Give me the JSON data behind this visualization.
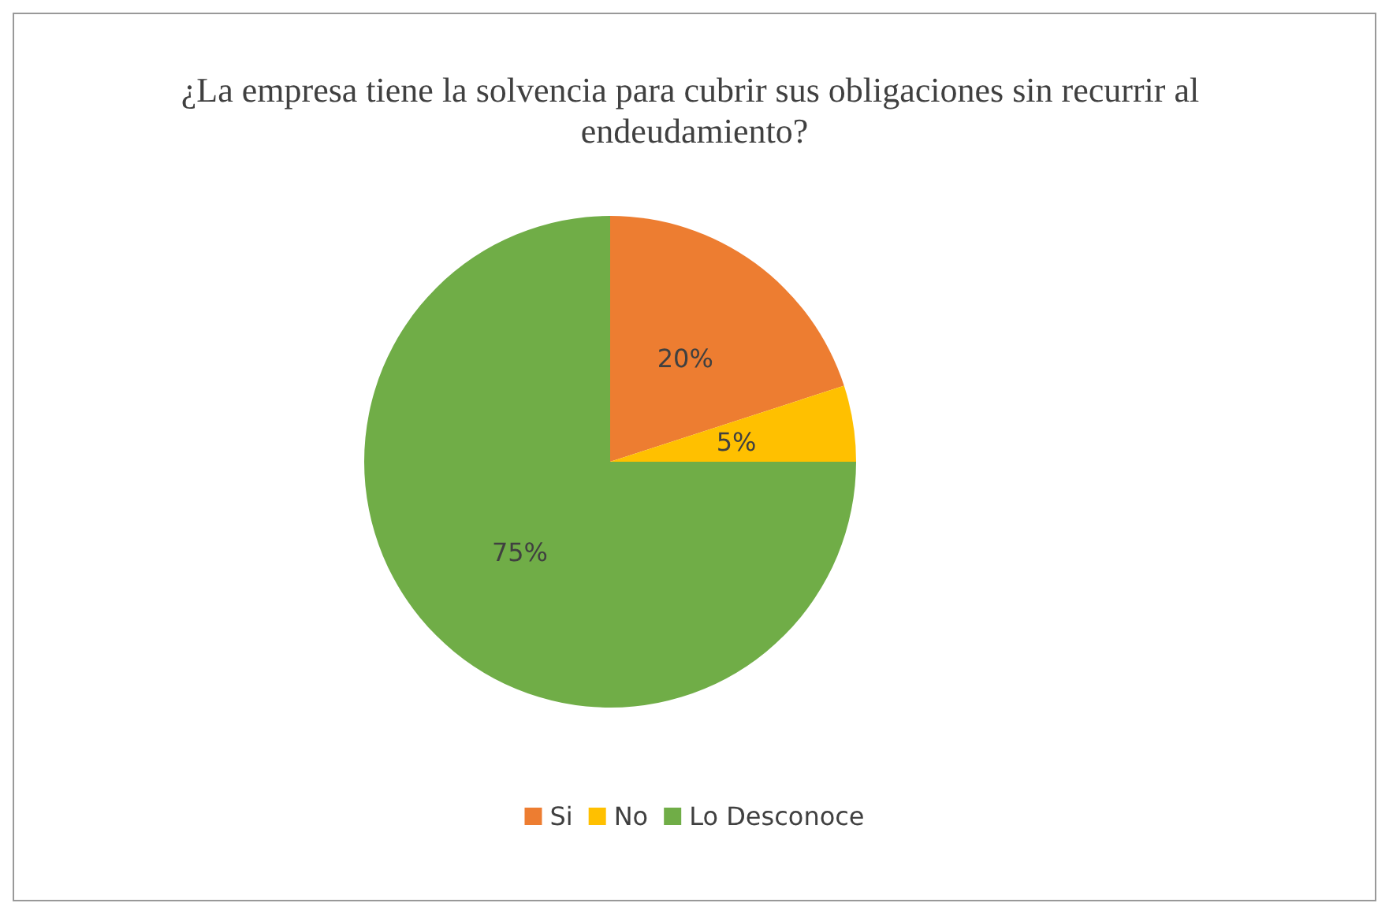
{
  "chart_data": {
    "type": "pie",
    "title": "¿La empresa tiene la solvencia para cubrir sus obligaciones sin recurrir al endeudamiento?",
    "categories": [
      "Si",
      "No",
      "Lo Desconoce"
    ],
    "values": [
      20,
      5,
      75
    ],
    "colors": [
      "#ed7d31",
      "#ffc000",
      "#70ad47"
    ],
    "value_labels": [
      "20%",
      "5%",
      "75%"
    ],
    "legend": "bottom"
  }
}
